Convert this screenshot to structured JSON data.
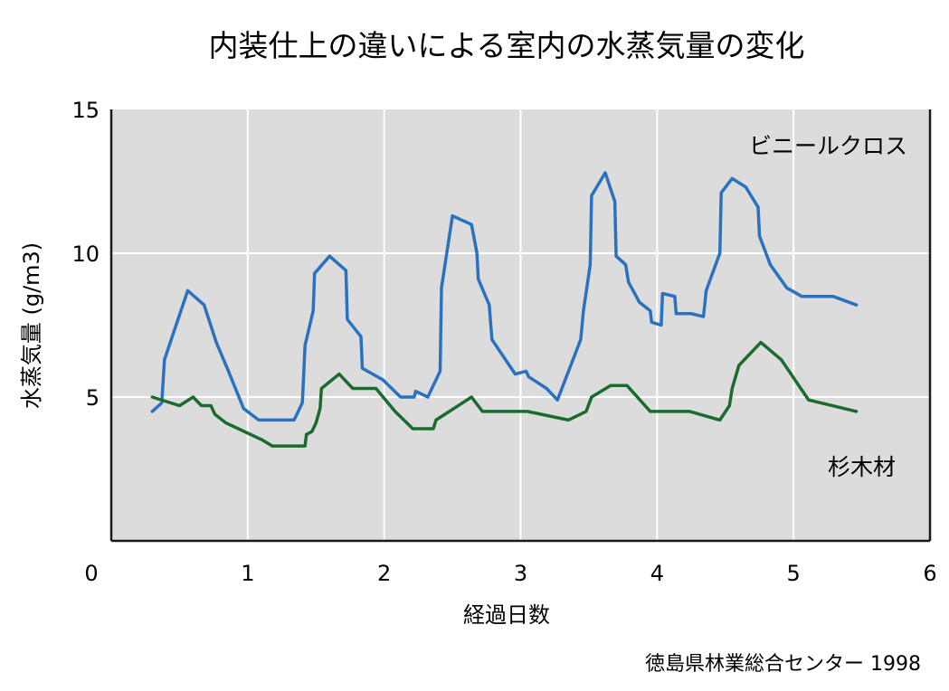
{
  "chart_data": {
    "type": "line",
    "title": "内装仕上の違いによる室内の水蒸気量の変化",
    "xlabel": "経過日数",
    "ylabel": "水蒸気量 (g/m3)",
    "xlim": [
      0,
      6
    ],
    "ylim": [
      0,
      15
    ],
    "x_ticks": [
      "0",
      "1",
      "2",
      "3",
      "4",
      "5",
      "6"
    ],
    "y_ticks": [
      "5",
      "10",
      "15"
    ],
    "grid": true,
    "source": "徳島県林業総合センター 1998",
    "series": [
      {
        "name": "ビニールクロス",
        "color": "#2a72bf",
        "points": [
          [
            0.3,
            4.5
          ],
          [
            0.37,
            4.8
          ],
          [
            0.39,
            6.3
          ],
          [
            0.56,
            8.7
          ],
          [
            0.68,
            8.2
          ],
          [
            0.77,
            6.9
          ],
          [
            0.85,
            6.0
          ],
          [
            0.97,
            4.6
          ],
          [
            1.08,
            4.2
          ],
          [
            1.34,
            4.2
          ],
          [
            1.4,
            4.8
          ],
          [
            1.42,
            6.8
          ],
          [
            1.48,
            8.0
          ],
          [
            1.49,
            9.3
          ],
          [
            1.6,
            9.9
          ],
          [
            1.72,
            9.4
          ],
          [
            1.73,
            7.7
          ],
          [
            1.83,
            7.1
          ],
          [
            1.84,
            6.0
          ],
          [
            1.99,
            5.6
          ],
          [
            2.12,
            5.0
          ],
          [
            2.22,
            5.0
          ],
          [
            2.23,
            5.2
          ],
          [
            2.32,
            5.0
          ],
          [
            2.41,
            5.9
          ],
          [
            2.42,
            8.8
          ],
          [
            2.5,
            11.3
          ],
          [
            2.64,
            11.0
          ],
          [
            2.68,
            10.0
          ],
          [
            2.69,
            9.1
          ],
          [
            2.77,
            8.2
          ],
          [
            2.79,
            7.0
          ],
          [
            2.96,
            5.8
          ],
          [
            3.04,
            5.9
          ],
          [
            3.06,
            5.7
          ],
          [
            3.19,
            5.3
          ],
          [
            3.27,
            4.9
          ],
          [
            3.44,
            7.0
          ],
          [
            3.46,
            8.0
          ],
          [
            3.51,
            9.6
          ],
          [
            3.52,
            12.0
          ],
          [
            3.62,
            12.8
          ],
          [
            3.69,
            11.8
          ],
          [
            3.7,
            9.9
          ],
          [
            3.77,
            9.6
          ],
          [
            3.79,
            9.0
          ],
          [
            3.87,
            8.3
          ],
          [
            3.95,
            8.0
          ],
          [
            3.96,
            7.6
          ],
          [
            4.03,
            7.5
          ],
          [
            4.04,
            8.6
          ],
          [
            4.13,
            8.5
          ],
          [
            4.14,
            7.9
          ],
          [
            4.25,
            7.9
          ],
          [
            4.34,
            7.8
          ],
          [
            4.36,
            8.7
          ],
          [
            4.46,
            10.0
          ],
          [
            4.47,
            12.1
          ],
          [
            4.55,
            12.6
          ],
          [
            4.65,
            12.3
          ],
          [
            4.74,
            11.6
          ],
          [
            4.75,
            10.6
          ],
          [
            4.83,
            9.6
          ],
          [
            4.95,
            8.8
          ],
          [
            5.06,
            8.5
          ],
          [
            5.29,
            8.5
          ],
          [
            5.46,
            8.2
          ]
        ]
      },
      {
        "name": "杉木材",
        "color": "#1a6b2e",
        "points": [
          [
            0.3,
            5.0
          ],
          [
            0.5,
            4.7
          ],
          [
            0.6,
            5.0
          ],
          [
            0.66,
            4.7
          ],
          [
            0.73,
            4.7
          ],
          [
            0.76,
            4.4
          ],
          [
            0.84,
            4.1
          ],
          [
            1.11,
            3.5
          ],
          [
            1.18,
            3.3
          ],
          [
            1.42,
            3.3
          ],
          [
            1.43,
            3.7
          ],
          [
            1.47,
            3.8
          ],
          [
            1.5,
            4.1
          ],
          [
            1.53,
            4.6
          ],
          [
            1.54,
            5.3
          ],
          [
            1.67,
            5.8
          ],
          [
            1.77,
            5.3
          ],
          [
            1.94,
            5.3
          ],
          [
            2.08,
            4.5
          ],
          [
            2.21,
            3.9
          ],
          [
            2.36,
            3.9
          ],
          [
            2.38,
            4.2
          ],
          [
            2.64,
            5.0
          ],
          [
            2.72,
            4.5
          ],
          [
            3.05,
            4.5
          ],
          [
            3.35,
            4.2
          ],
          [
            3.48,
            4.5
          ],
          [
            3.52,
            5.0
          ],
          [
            3.66,
            5.4
          ],
          [
            3.78,
            5.4
          ],
          [
            3.95,
            4.5
          ],
          [
            4.24,
            4.5
          ],
          [
            4.46,
            4.2
          ],
          [
            4.53,
            4.7
          ],
          [
            4.55,
            5.3
          ],
          [
            4.6,
            6.1
          ],
          [
            4.76,
            6.9
          ],
          [
            4.91,
            6.3
          ],
          [
            5.11,
            4.9
          ],
          [
            5.46,
            4.5
          ]
        ]
      }
    ]
  }
}
